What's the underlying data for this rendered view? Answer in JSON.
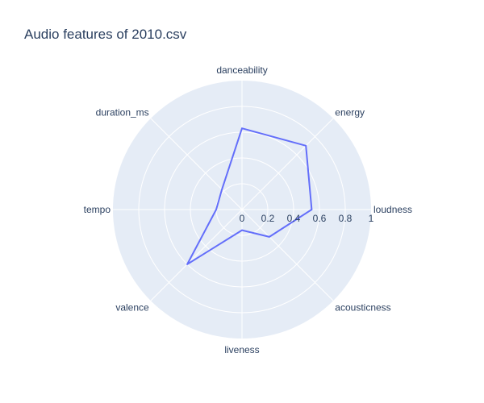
{
  "chart_data": {
    "type": "radar",
    "title": "Audio features of 2010.csv",
    "axes": [
      "loudness",
      "energy",
      "danceability",
      "duration_ms",
      "tempo",
      "valence",
      "liveness",
      "acousticness"
    ],
    "values": [
      0.54,
      0.7,
      0.63,
      0.22,
      0.2,
      0.6,
      0.16,
      0.3
    ],
    "radial_range": [
      0,
      1
    ],
    "radial_ticks": [
      "0",
      "0.2",
      "0.4",
      "0.6",
      "0.8",
      "1"
    ],
    "line_color": "#636efa",
    "background_color": "#e5ecf6",
    "grid_color": "#ffffff",
    "text_color": "#2a3f5f"
  }
}
